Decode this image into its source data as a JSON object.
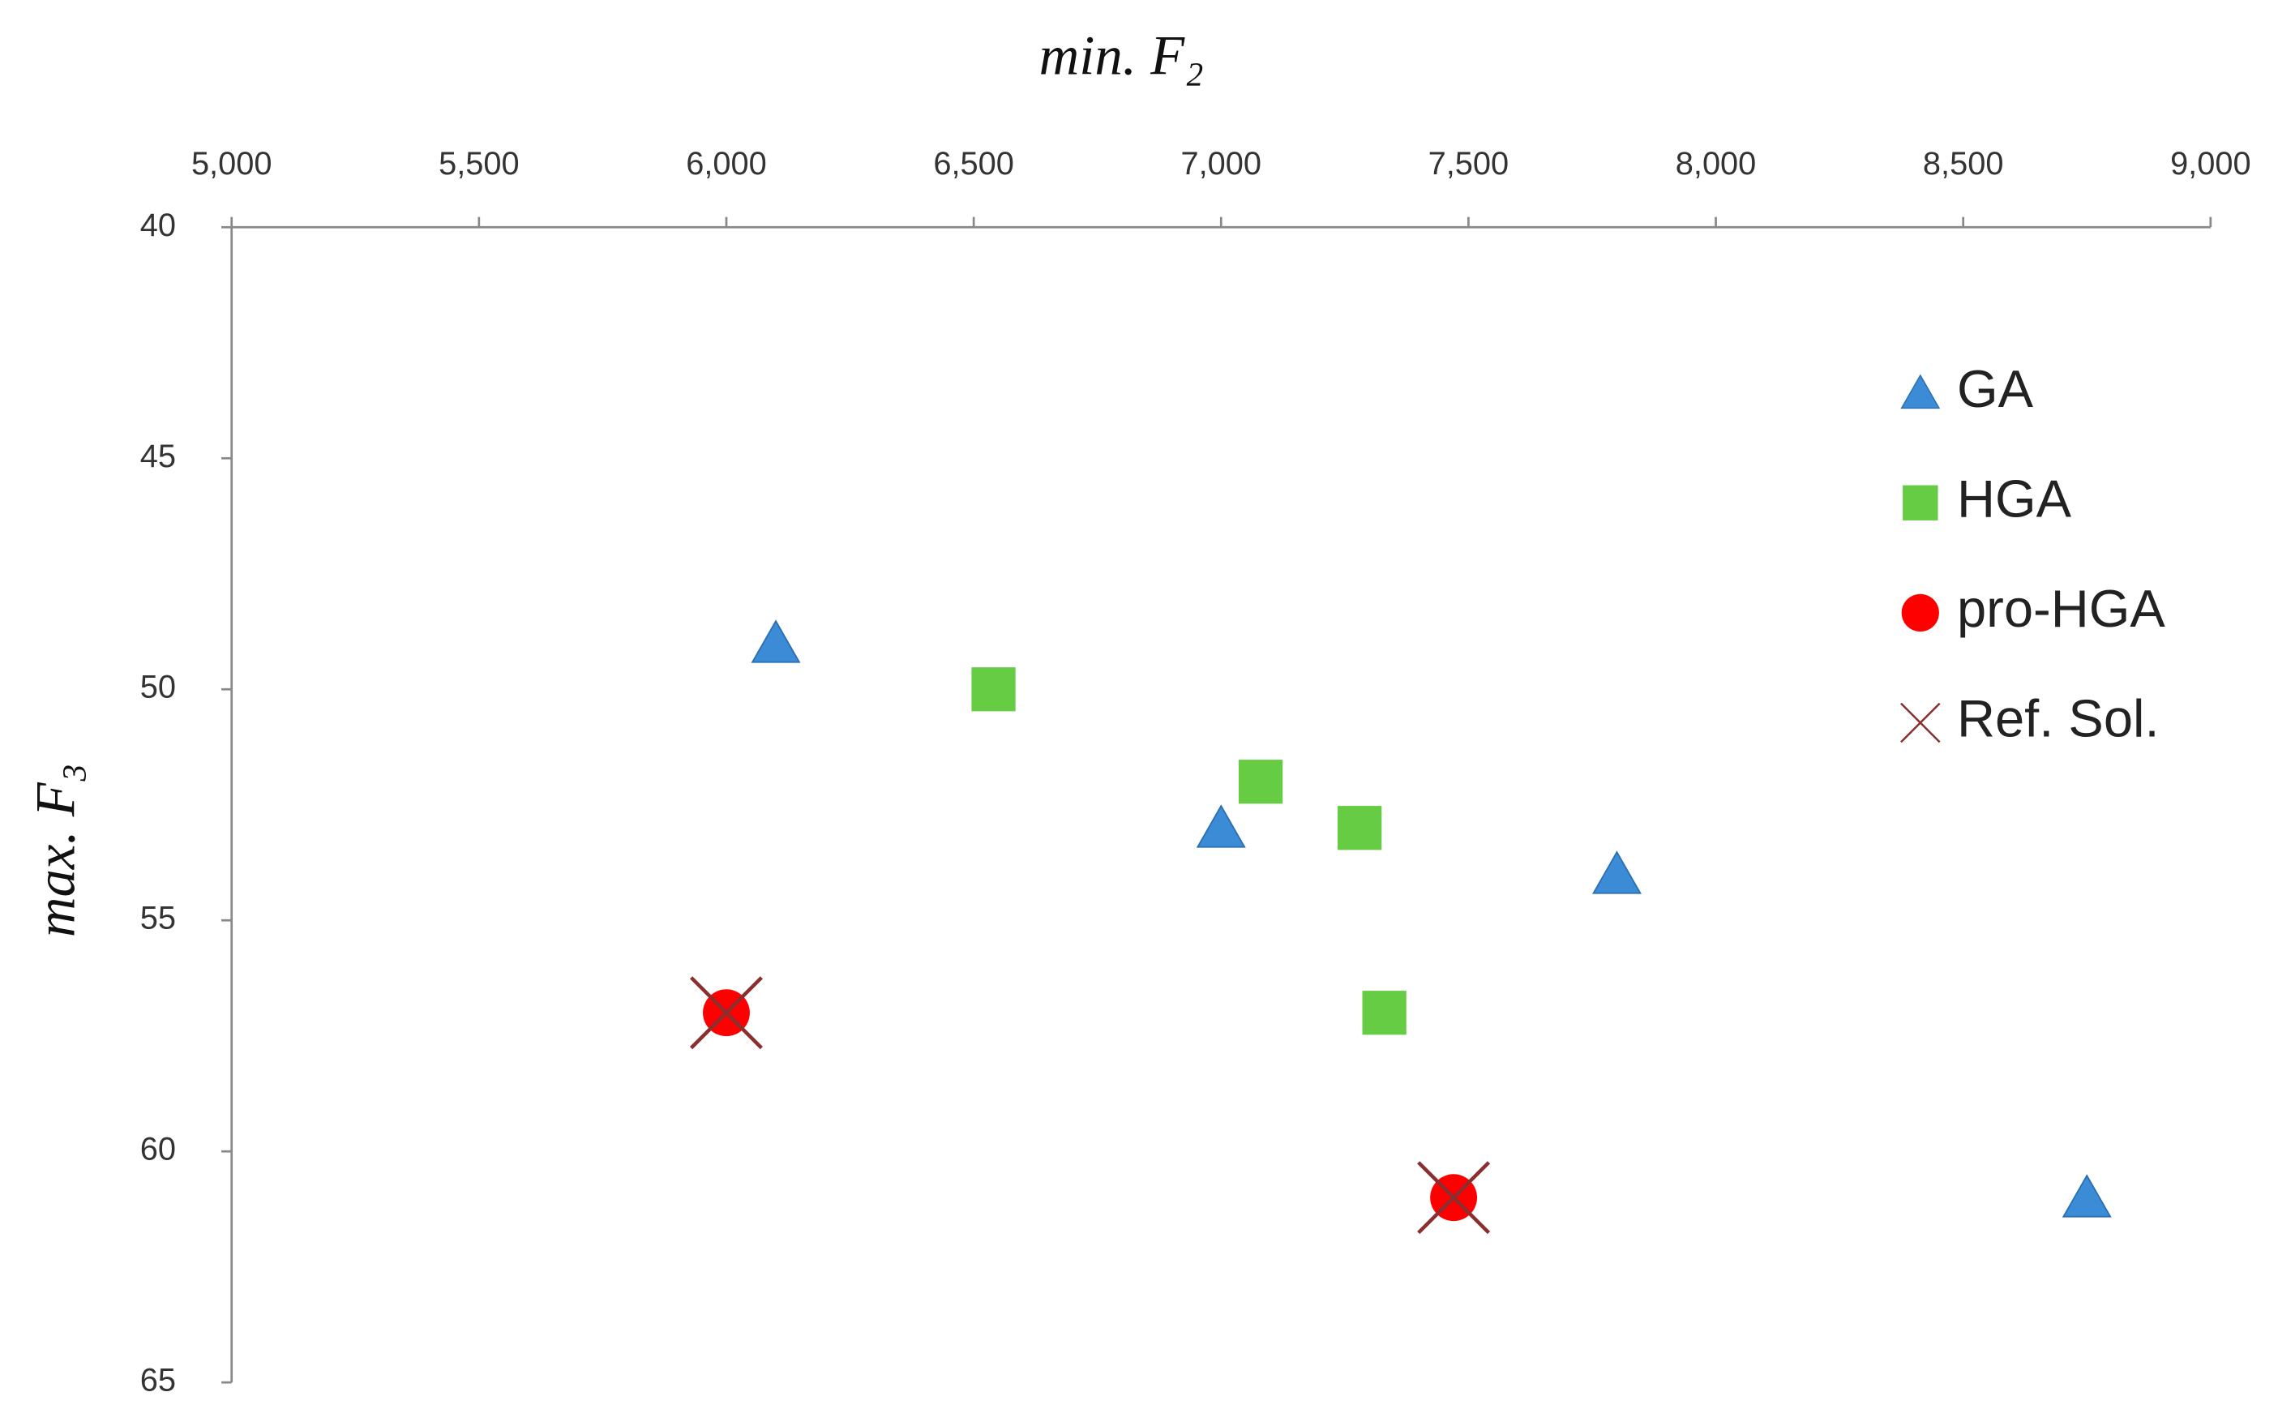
{
  "chart_data": {
    "type": "scatter",
    "x_label": "min. F₂",
    "y_label": "max. F₃",
    "xlim": [
      5000,
      9000
    ],
    "xticks": [
      {
        "value": 5000,
        "label": "5,000"
      },
      {
        "value": 5500,
        "label": "5,500"
      },
      {
        "value": 6000,
        "label": "6,000"
      },
      {
        "value": 6500,
        "label": "6,500"
      },
      {
        "value": 7000,
        "label": "7,000"
      },
      {
        "value": 7500,
        "label": "7,500"
      },
      {
        "value": 8000,
        "label": "8,000"
      },
      {
        "value": 8500,
        "label": "8,500"
      },
      {
        "value": 9000,
        "label": "9,000"
      }
    ],
    "ylim": [
      40,
      65
    ],
    "yticks": [
      40,
      45,
      50,
      55,
      60,
      65
    ],
    "y_inverted": true,
    "x_axis_position": "top",
    "grid": false,
    "legend_position": "upper right",
    "series": [
      {
        "name": "GA",
        "color": "#3b8bd6",
        "marker": "triangle",
        "x": [
          6100,
          7000,
          7800,
          8750
        ],
        "values": [
          49,
          53,
          54,
          61
        ]
      },
      {
        "name": "HGA",
        "color": "#66cc44",
        "marker": "square",
        "x": [
          6540,
          7080,
          7280,
          7330
        ],
        "values": [
          50,
          52,
          53,
          57
        ]
      },
      {
        "name": "pro-HGA",
        "color": "#ff0000",
        "marker": "circle",
        "x": [
          6000,
          7470
        ],
        "values": [
          57,
          61
        ]
      },
      {
        "name": "Ref. Sol.",
        "color": "#8b2e2e",
        "marker": "x",
        "x": [
          6000,
          7470
        ],
        "values": [
          57,
          61
        ]
      }
    ]
  }
}
